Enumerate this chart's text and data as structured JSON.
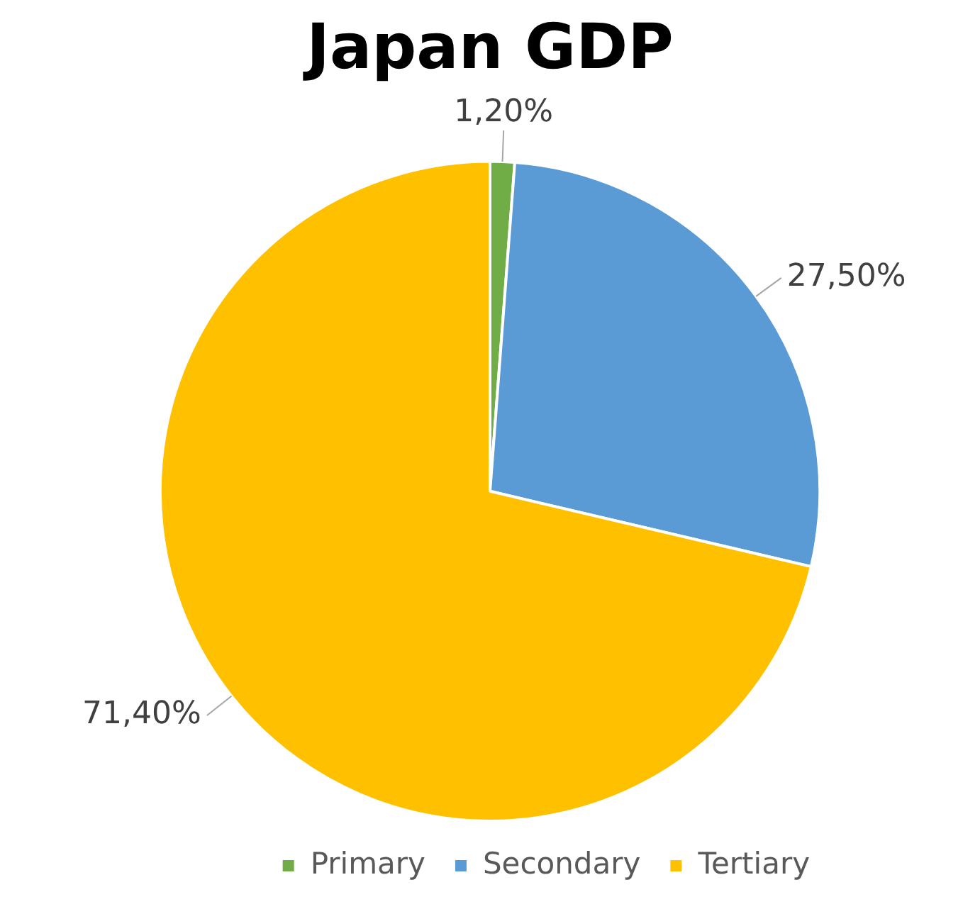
{
  "chart_data": {
    "type": "pie",
    "title": "Japan GDP",
    "categories": [
      "Primary",
      "Secondary",
      "Tertiary"
    ],
    "values": [
      1.2,
      27.5,
      71.4
    ],
    "colors": [
      "#70ad47",
      "#5b9bd5",
      "#ffc000"
    ],
    "value_labels": [
      "1,20%",
      "27,50%",
      "71,40%"
    ],
    "legend": "bottom right"
  }
}
